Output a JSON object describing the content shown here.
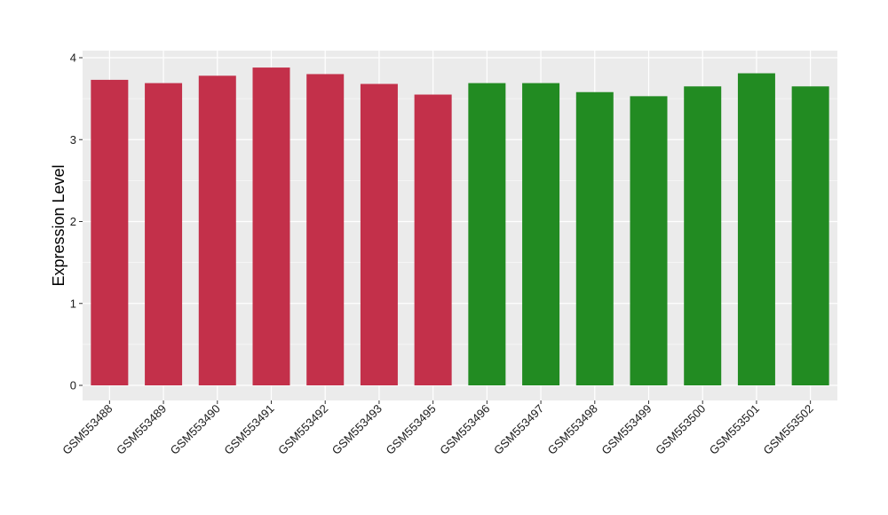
{
  "chart_data": {
    "type": "bar",
    "title": "",
    "xlabel": "",
    "ylabel": "Expression Level",
    "ylim": [
      0,
      4
    ],
    "yticks": [
      0,
      1,
      2,
      3,
      4
    ],
    "grid": true,
    "legend": "none",
    "categories": [
      "GSM553488",
      "GSM553489",
      "GSM553490",
      "GSM553491",
      "GSM553492",
      "GSM553493",
      "GSM553495",
      "GSM553496",
      "GSM553497",
      "GSM553498",
      "GSM553499",
      "GSM553500",
      "GSM553501",
      "GSM553502"
    ],
    "values": [
      3.73,
      3.69,
      3.78,
      3.88,
      3.8,
      3.68,
      3.55,
      3.69,
      3.69,
      3.58,
      3.53,
      3.65,
      3.81,
      3.65
    ],
    "bar_colors": [
      "#c3304a",
      "#c3304a",
      "#c3304a",
      "#c3304a",
      "#c3304a",
      "#c3304a",
      "#c3304a",
      "#228b22",
      "#228b22",
      "#228b22",
      "#228b22",
      "#228b22",
      "#228b22",
      "#228b22"
    ],
    "panel_background": "#ebebeb",
    "gridline_color": "#ffffff"
  }
}
